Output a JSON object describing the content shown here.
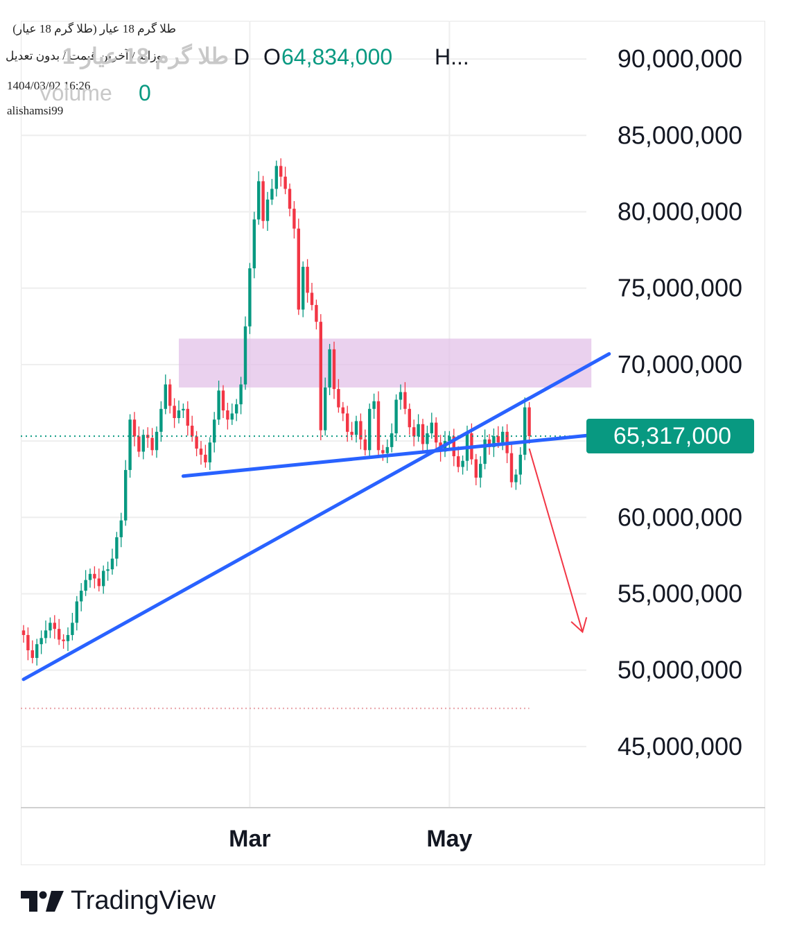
{
  "header": {
    "symbol_line": "طلا گرم 18 عیار (طلا گرم 18 عیار)",
    "settings_line": "روزانه / آخرین قیمت / بدون تعدیل",
    "datetime": "1404/03/02 16:26",
    "author": "alishamsi99",
    "watermark_symbol": "طلا گرم 18 عیار 1",
    "period_fragment": "D",
    "open_label": "O",
    "open_value": "64,834,000",
    "high_label": "H...",
    "volume_label": "Volume",
    "volume_value": "0"
  },
  "colors": {
    "up": "#089981",
    "down": "#f23645",
    "trendline": "#2962ff",
    "zone_fill": "#e1bee7",
    "last_price_bg": "#089981",
    "arrow": "#f23645",
    "grid": "#eeeeee"
  },
  "chart_data": {
    "type": "candlestick",
    "y_axis": {
      "min": 41000000,
      "max": 92500000,
      "ticks": [
        90000000,
        85000000,
        80000000,
        75000000,
        70000000,
        65000000,
        60000000,
        55000000,
        50000000,
        45000000
      ],
      "tick_labels": [
        "90,000,000",
        "85,000,000",
        "80,000,000",
        "75,000,000",
        "70,000,000",
        "65,000,000",
        "60,000,000",
        "55,000,000",
        "50,000,000",
        "45,000,000"
      ]
    },
    "x_axis": {
      "labels": [
        {
          "text": "Mar",
          "index": 51
        },
        {
          "text": "May",
          "index": 96
        }
      ]
    },
    "last_price": {
      "value": 65317000,
      "label": "65,317,000"
    },
    "lower_dotted_level": 47500000,
    "resistance_zone": {
      "from_index": 35,
      "to_index": 128,
      "low": 68500000,
      "high": 71700000
    },
    "trendlines": [
      {
        "name": "rising",
        "from": {
          "index": 0,
          "value": 49400000
        },
        "to": {
          "index": 132,
          "value": 70700000
        }
      },
      {
        "name": "flat",
        "from": {
          "index": 36,
          "value": 62700000
        },
        "to": {
          "index": 132,
          "value": 65500000
        }
      }
    ],
    "projection_arrow": {
      "from": {
        "index": 114,
        "value": 64500000
      },
      "to": {
        "index": 126,
        "value": 52500000
      }
    },
    "closes": [
      52300000,
      51300000,
      50800000,
      51700000,
      52100000,
      52600000,
      53100000,
      52700000,
      52000000,
      51900000,
      52300000,
      53100000,
      54500000,
      55200000,
      55900000,
      56300000,
      56000000,
      55500000,
      56500000,
      56600000,
      57300000,
      58700000,
      59800000,
      63100000,
      66400000,
      65300000,
      64300000,
      65400000,
      65200000,
      64400000,
      65600000,
      67100000,
      68700000,
      67300000,
      66500000,
      67000000,
      67100000,
      66000000,
      65300000,
      64500000,
      64100000,
      63600000,
      64900000,
      66400000,
      68300000,
      67000000,
      66400000,
      66800000,
      67400000,
      68700000,
      72500000,
      76300000,
      79500000,
      82000000,
      79400000,
      80800000,
      81500000,
      83000000,
      82300000,
      81500000,
      80200000,
      78900000,
      73600000,
      76400000,
      74700000,
      73900000,
      72800000,
      65700000,
      68500000,
      71000000,
      68400000,
      67200000,
      66800000,
      65600000,
      65400000,
      66300000,
      65100000,
      64400000,
      67100000,
      67600000,
      64400000,
      64200000,
      64600000,
      65500000,
      67700000,
      68200000,
      67100000,
      65900000,
      65300000,
      66100000,
      64800000,
      65500000,
      66200000,
      64900000,
      64300000,
      65000000,
      65300000,
      64000000,
      63300000,
      63700000,
      65500000,
      63800000,
      62600000,
      63500000,
      65100000,
      64600000,
      65317000,
      64900000,
      65600000,
      64200000,
      62300000,
      62800000,
      64100000,
      67200000,
      65317000
    ]
  },
  "brand": {
    "name": "TradingView"
  }
}
